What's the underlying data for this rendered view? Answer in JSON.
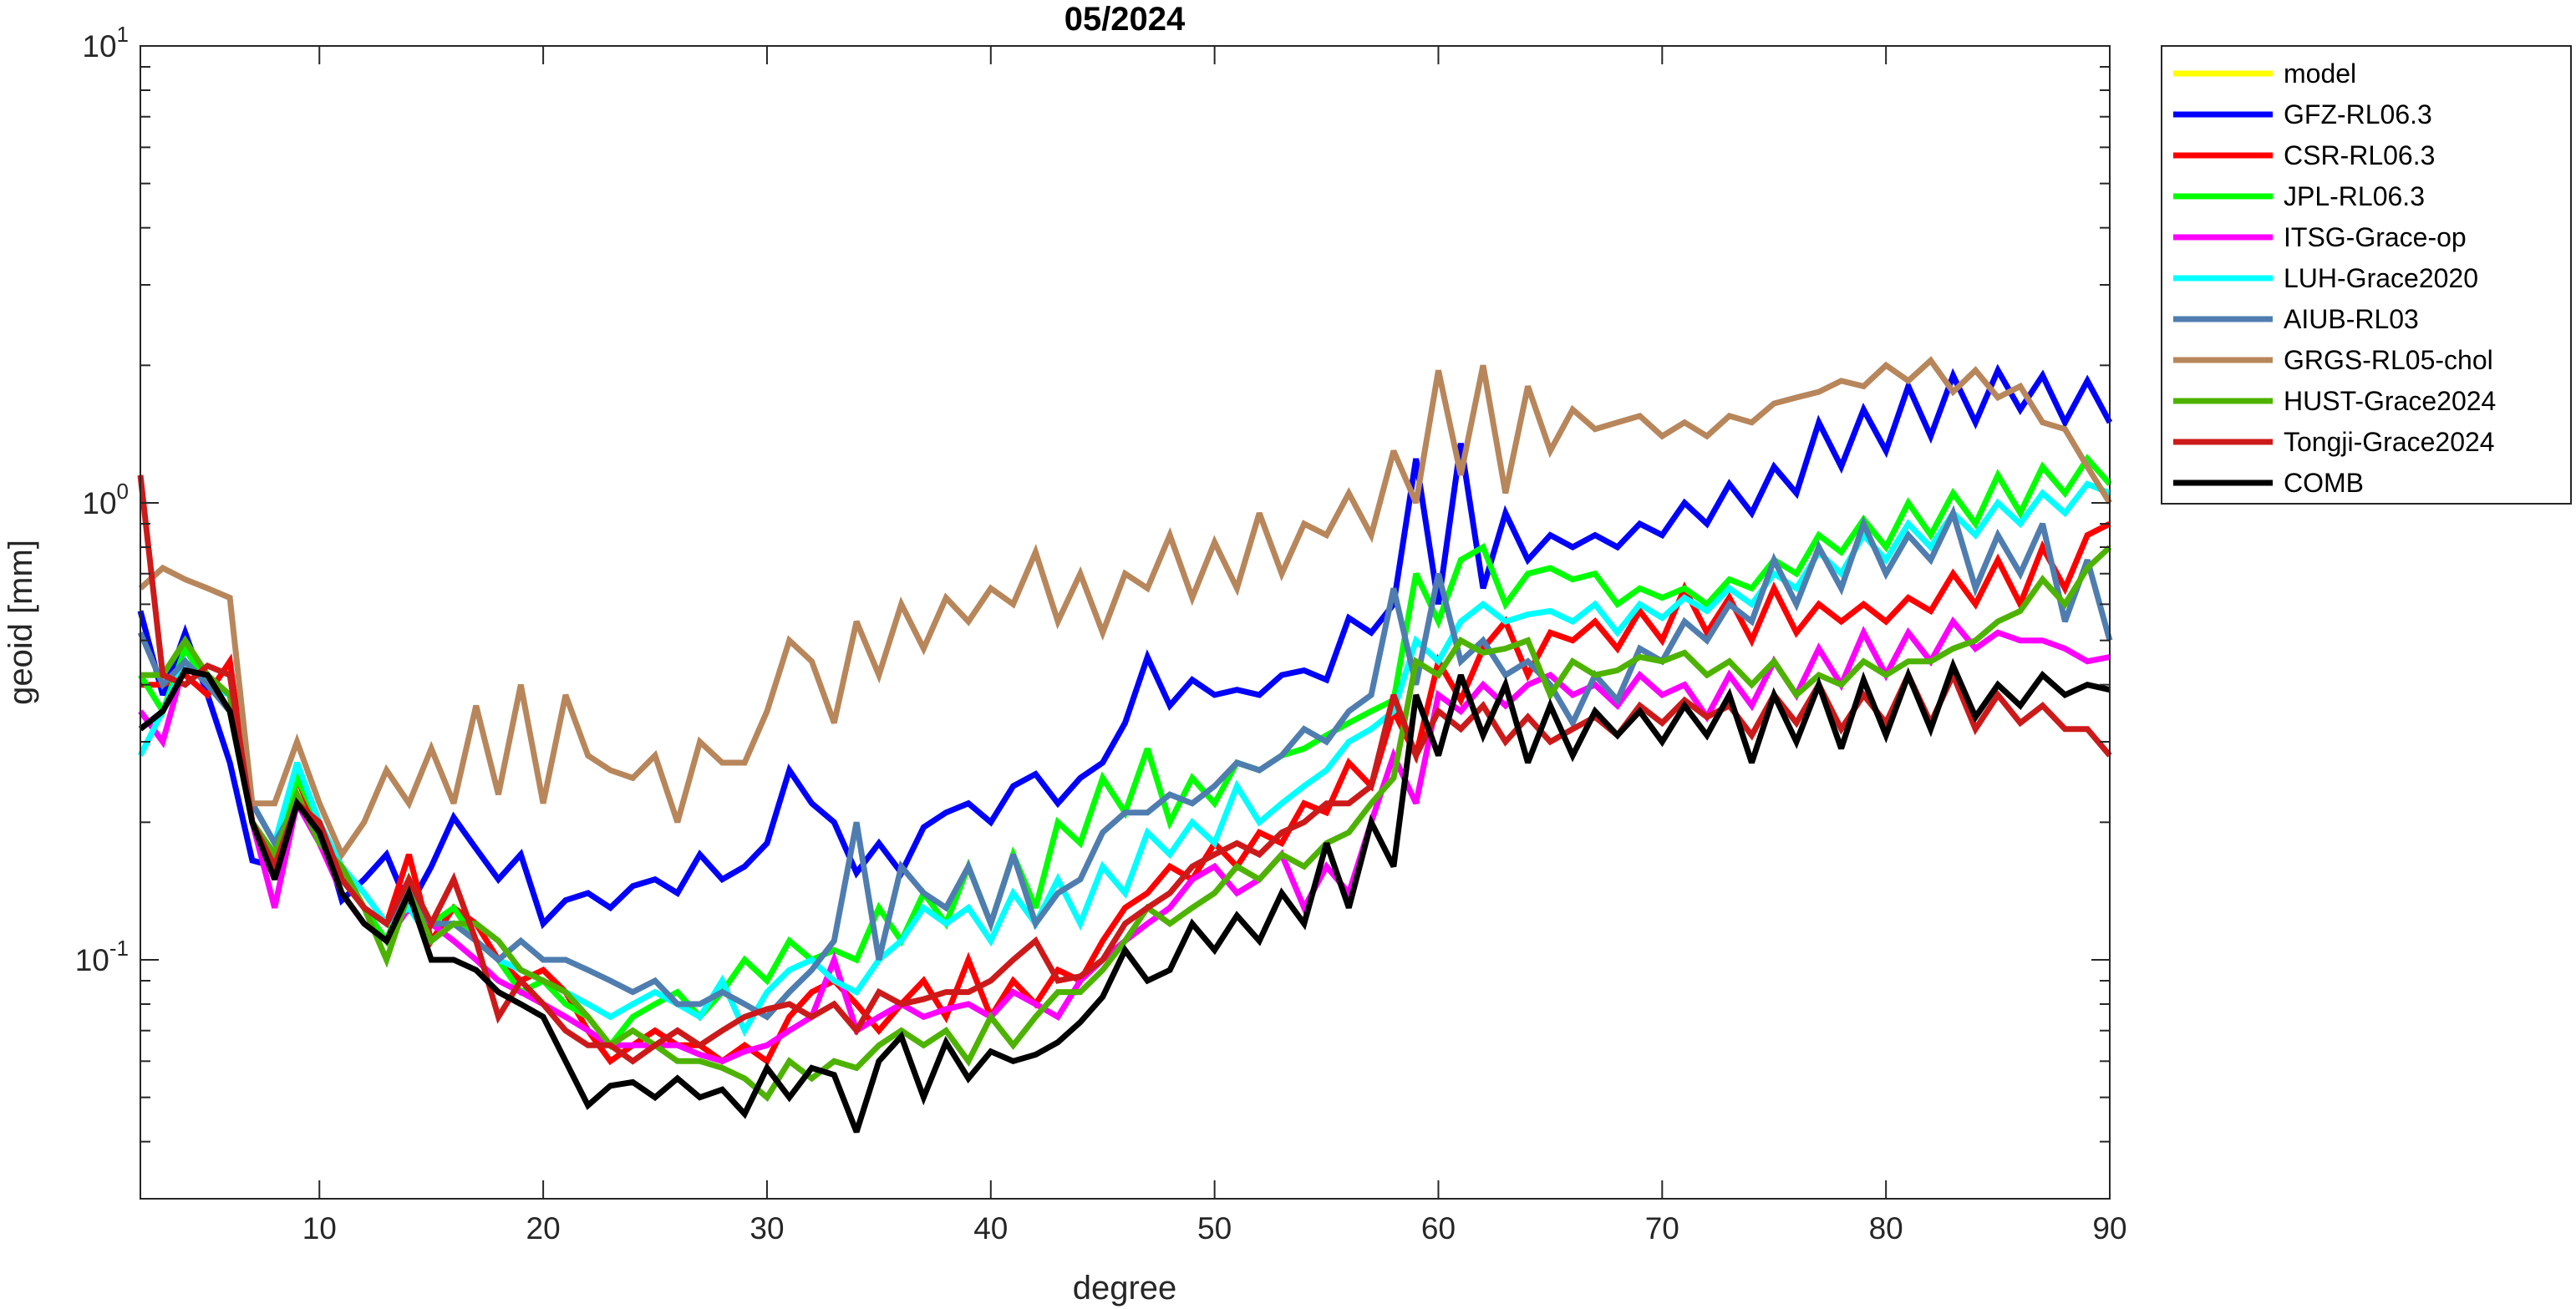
{
  "chart_data": {
    "type": "line",
    "title": "05/2024",
    "xlabel": "degree",
    "ylabel": "geoid [mm]",
    "xlim": [
      2,
      90
    ],
    "ylim": [
      0.03,
      10
    ],
    "yscale": "log",
    "xticks": [
      10,
      20,
      30,
      40,
      50,
      60,
      70,
      80,
      90
    ],
    "yticks": [
      {
        "value": 0.1,
        "base": "10",
        "exp": "-1"
      },
      {
        "value": 1,
        "base": "10",
        "exp": "0"
      },
      {
        "value": 10,
        "base": "10",
        "exp": "1"
      }
    ],
    "grid": false,
    "legend_position": "outside-top-right",
    "x_start": 2,
    "series": [
      {
        "name": "model",
        "color": "#ffff00",
        "values": []
      },
      {
        "name": "GFZ-RL06.3",
        "color": "#0000ff",
        "values": [
          0.58,
          0.38,
          0.52,
          0.38,
          0.27,
          0.165,
          0.16,
          0.25,
          0.2,
          0.135,
          0.15,
          0.17,
          0.13,
          0.16,
          0.205,
          0.175,
          0.15,
          0.17,
          0.12,
          0.135,
          0.14,
          0.13,
          0.145,
          0.15,
          0.14,
          0.17,
          0.15,
          0.16,
          0.18,
          0.26,
          0.22,
          0.2,
          0.155,
          0.18,
          0.155,
          0.195,
          0.21,
          0.22,
          0.2,
          0.24,
          0.255,
          0.22,
          0.25,
          0.27,
          0.33,
          0.46,
          0.36,
          0.41,
          0.38,
          0.39,
          0.38,
          0.42,
          0.43,
          0.41,
          0.56,
          0.52,
          0.6,
          1.25,
          0.6,
          1.35,
          0.65,
          0.95,
          0.75,
          0.85,
          0.8,
          0.85,
          0.8,
          0.9,
          0.85,
          1.0,
          0.9,
          1.1,
          0.95,
          1.2,
          1.05,
          1.5,
          1.2,
          1.6,
          1.3,
          1.8,
          1.4,
          1.9,
          1.5,
          1.95,
          1.6,
          1.9,
          1.5,
          1.85,
          1.5
        ]
      },
      {
        "name": "CSR-RL06.3",
        "color": "#ff0000",
        "values": [
          0.4,
          0.4,
          0.42,
          0.38,
          0.45,
          0.2,
          0.17,
          0.25,
          0.19,
          0.15,
          0.13,
          0.12,
          0.17,
          0.11,
          0.13,
          0.12,
          0.1,
          0.09,
          0.095,
          0.085,
          0.07,
          0.06,
          0.065,
          0.07,
          0.065,
          0.065,
          0.06,
          0.065,
          0.06,
          0.075,
          0.085,
          0.09,
          0.08,
          0.07,
          0.08,
          0.09,
          0.075,
          0.1,
          0.075,
          0.09,
          0.08,
          0.095,
          0.09,
          0.11,
          0.13,
          0.14,
          0.16,
          0.15,
          0.18,
          0.16,
          0.19,
          0.18,
          0.22,
          0.21,
          0.27,
          0.24,
          0.35,
          0.28,
          0.45,
          0.37,
          0.48,
          0.55,
          0.42,
          0.52,
          0.5,
          0.55,
          0.48,
          0.58,
          0.5,
          0.65,
          0.52,
          0.62,
          0.5,
          0.65,
          0.52,
          0.6,
          0.55,
          0.6,
          0.55,
          0.62,
          0.58,
          0.7,
          0.6,
          0.75,
          0.6,
          0.8,
          0.65,
          0.85,
          0.9
        ]
      },
      {
        "name": "JPL-RL06.3",
        "color": "#00ff00",
        "values": [
          0.42,
          0.35,
          0.48,
          0.4,
          0.35,
          0.2,
          0.17,
          0.25,
          0.2,
          0.15,
          0.13,
          0.11,
          0.15,
          0.12,
          0.13,
          0.11,
          0.1,
          0.085,
          0.09,
          0.08,
          0.075,
          0.065,
          0.075,
          0.08,
          0.085,
          0.075,
          0.085,
          0.1,
          0.09,
          0.11,
          0.1,
          0.105,
          0.1,
          0.13,
          0.11,
          0.14,
          0.12,
          0.16,
          0.12,
          0.17,
          0.13,
          0.2,
          0.18,
          0.25,
          0.21,
          0.29,
          0.2,
          0.25,
          0.22,
          0.27,
          0.26,
          0.28,
          0.29,
          0.31,
          0.33,
          0.35,
          0.37,
          0.7,
          0.55,
          0.75,
          0.8,
          0.6,
          0.7,
          0.72,
          0.68,
          0.7,
          0.6,
          0.65,
          0.62,
          0.65,
          0.6,
          0.68,
          0.65,
          0.75,
          0.7,
          0.85,
          0.78,
          0.92,
          0.8,
          1.0,
          0.85,
          1.05,
          0.9,
          1.15,
          0.95,
          1.2,
          1.05,
          1.25,
          1.1
        ]
      },
      {
        "name": "ITSG-Grace-op",
        "color": "#ff00ff",
        "values": [
          0.35,
          0.3,
          0.45,
          0.4,
          0.38,
          0.2,
          0.13,
          0.22,
          0.18,
          0.14,
          0.12,
          0.11,
          0.13,
          0.12,
          0.11,
          0.1,
          0.09,
          0.085,
          0.08,
          0.075,
          0.07,
          0.065,
          0.065,
          0.065,
          0.065,
          0.062,
          0.06,
          0.063,
          0.065,
          0.07,
          0.075,
          0.1,
          0.07,
          0.075,
          0.08,
          0.075,
          0.078,
          0.08,
          0.075,
          0.085,
          0.08,
          0.075,
          0.09,
          0.1,
          0.11,
          0.12,
          0.13,
          0.15,
          0.16,
          0.14,
          0.15,
          0.17,
          0.13,
          0.16,
          0.14,
          0.2,
          0.28,
          0.22,
          0.38,
          0.35,
          0.4,
          0.36,
          0.4,
          0.42,
          0.38,
          0.4,
          0.36,
          0.42,
          0.38,
          0.4,
          0.34,
          0.42,
          0.36,
          0.45,
          0.38,
          0.48,
          0.4,
          0.52,
          0.42,
          0.52,
          0.45,
          0.55,
          0.48,
          0.52,
          0.5,
          0.5,
          0.48,
          0.45,
          0.46
        ]
      },
      {
        "name": "LUH-Grace2020",
        "color": "#00ffff",
        "values": [
          0.28,
          0.35,
          0.45,
          0.4,
          0.38,
          0.22,
          0.18,
          0.27,
          0.2,
          0.16,
          0.14,
          0.12,
          0.13,
          0.11,
          0.12,
          0.11,
          0.1,
          0.095,
          0.09,
          0.085,
          0.08,
          0.075,
          0.08,
          0.085,
          0.08,
          0.075,
          0.09,
          0.07,
          0.085,
          0.095,
          0.1,
          0.09,
          0.085,
          0.1,
          0.11,
          0.13,
          0.12,
          0.13,
          0.11,
          0.14,
          0.12,
          0.15,
          0.12,
          0.16,
          0.14,
          0.19,
          0.17,
          0.2,
          0.18,
          0.24,
          0.2,
          0.22,
          0.24,
          0.26,
          0.3,
          0.32,
          0.35,
          0.5,
          0.45,
          0.55,
          0.6,
          0.55,
          0.57,
          0.58,
          0.55,
          0.6,
          0.52,
          0.6,
          0.56,
          0.62,
          0.58,
          0.65,
          0.6,
          0.7,
          0.65,
          0.78,
          0.7,
          0.85,
          0.75,
          0.9,
          0.8,
          0.95,
          0.85,
          1.0,
          0.9,
          1.05,
          0.95,
          1.1,
          1.05
        ]
      },
      {
        "name": "AIUB-RL03",
        "color": "#4f7daf",
        "values": [
          0.52,
          0.4,
          0.45,
          0.4,
          0.35,
          0.22,
          0.18,
          0.22,
          0.19,
          0.15,
          0.13,
          0.12,
          0.14,
          0.12,
          0.12,
          0.11,
          0.1,
          0.11,
          0.1,
          0.1,
          0.095,
          0.09,
          0.085,
          0.09,
          0.08,
          0.08,
          0.085,
          0.08,
          0.075,
          0.085,
          0.095,
          0.11,
          0.2,
          0.1,
          0.16,
          0.14,
          0.13,
          0.16,
          0.12,
          0.17,
          0.12,
          0.14,
          0.15,
          0.19,
          0.21,
          0.21,
          0.23,
          0.22,
          0.24,
          0.27,
          0.26,
          0.28,
          0.32,
          0.3,
          0.35,
          0.38,
          0.65,
          0.4,
          0.7,
          0.45,
          0.5,
          0.42,
          0.45,
          0.4,
          0.33,
          0.42,
          0.37,
          0.48,
          0.45,
          0.55,
          0.5,
          0.6,
          0.55,
          0.75,
          0.6,
          0.8,
          0.65,
          0.9,
          0.7,
          0.85,
          0.75,
          0.95,
          0.65,
          0.85,
          0.7,
          0.9,
          0.55,
          0.75,
          0.5
        ]
      },
      {
        "name": "GRGS-RL05-chol",
        "color": "#b8865b",
        "values": [
          0.65,
          0.72,
          0.68,
          0.65,
          0.62,
          0.22,
          0.22,
          0.3,
          0.22,
          0.17,
          0.2,
          0.26,
          0.22,
          0.29,
          0.22,
          0.36,
          0.23,
          0.4,
          0.22,
          0.38,
          0.28,
          0.26,
          0.25,
          0.28,
          0.2,
          0.3,
          0.27,
          0.27,
          0.35,
          0.5,
          0.45,
          0.33,
          0.55,
          0.42,
          0.6,
          0.48,
          0.62,
          0.55,
          0.65,
          0.6,
          0.78,
          0.55,
          0.7,
          0.52,
          0.7,
          0.65,
          0.85,
          0.62,
          0.82,
          0.65,
          0.95,
          0.7,
          0.9,
          0.85,
          1.05,
          0.85,
          1.3,
          1.0,
          1.95,
          1.15,
          2.0,
          1.05,
          1.8,
          1.3,
          1.6,
          1.45,
          1.5,
          1.55,
          1.4,
          1.5,
          1.4,
          1.55,
          1.5,
          1.65,
          1.7,
          1.75,
          1.85,
          1.8,
          2.0,
          1.85,
          2.05,
          1.75,
          1.95,
          1.7,
          1.8,
          1.5,
          1.45,
          1.2,
          1.0
        ]
      },
      {
        "name": "HUST-Grace2024",
        "color": "#4db300",
        "values": [
          0.42,
          0.42,
          0.5,
          0.42,
          0.38,
          0.2,
          0.17,
          0.23,
          0.18,
          0.16,
          0.13,
          0.1,
          0.14,
          0.11,
          0.12,
          0.12,
          0.11,
          0.095,
          0.09,
          0.085,
          0.075,
          0.065,
          0.07,
          0.065,
          0.06,
          0.06,
          0.058,
          0.055,
          0.05,
          0.06,
          0.055,
          0.06,
          0.058,
          0.065,
          0.07,
          0.065,
          0.07,
          0.06,
          0.075,
          0.065,
          0.075,
          0.085,
          0.085,
          0.095,
          0.11,
          0.13,
          0.12,
          0.13,
          0.14,
          0.16,
          0.15,
          0.17,
          0.16,
          0.18,
          0.19,
          0.22,
          0.25,
          0.45,
          0.42,
          0.5,
          0.47,
          0.48,
          0.5,
          0.38,
          0.45,
          0.42,
          0.43,
          0.46,
          0.45,
          0.47,
          0.42,
          0.45,
          0.4,
          0.45,
          0.38,
          0.42,
          0.4,
          0.45,
          0.42,
          0.45,
          0.45,
          0.48,
          0.5,
          0.55,
          0.58,
          0.68,
          0.6,
          0.72,
          0.8
        ]
      },
      {
        "name": "Tongji-Grace2024",
        "color": "#cc1a1a",
        "values": [
          1.15,
          0.42,
          0.4,
          0.44,
          0.42,
          0.2,
          0.16,
          0.22,
          0.2,
          0.15,
          0.13,
          0.12,
          0.15,
          0.12,
          0.15,
          0.11,
          0.075,
          0.09,
          0.08,
          0.07,
          0.065,
          0.065,
          0.06,
          0.065,
          0.07,
          0.065,
          0.07,
          0.075,
          0.078,
          0.08,
          0.075,
          0.08,
          0.07,
          0.085,
          0.08,
          0.082,
          0.085,
          0.085,
          0.09,
          0.1,
          0.11,
          0.09,
          0.092,
          0.1,
          0.12,
          0.13,
          0.14,
          0.16,
          0.17,
          0.18,
          0.17,
          0.19,
          0.2,
          0.22,
          0.22,
          0.24,
          0.38,
          0.28,
          0.35,
          0.32,
          0.36,
          0.3,
          0.34,
          0.3,
          0.32,
          0.34,
          0.31,
          0.36,
          0.33,
          0.37,
          0.34,
          0.36,
          0.31,
          0.38,
          0.33,
          0.4,
          0.32,
          0.38,
          0.33,
          0.42,
          0.33,
          0.42,
          0.32,
          0.38,
          0.33,
          0.36,
          0.32,
          0.32,
          0.28
        ]
      },
      {
        "name": "COMB",
        "color": "#000000",
        "values": [
          0.32,
          0.35,
          0.43,
          0.42,
          0.35,
          0.2,
          0.15,
          0.22,
          0.19,
          0.14,
          0.12,
          0.11,
          0.14,
          0.1,
          0.1,
          0.095,
          0.085,
          0.08,
          0.075,
          0.06,
          0.048,
          0.053,
          0.054,
          0.05,
          0.055,
          0.05,
          0.052,
          0.046,
          0.058,
          0.05,
          0.058,
          0.056,
          0.042,
          0.06,
          0.068,
          0.05,
          0.066,
          0.055,
          0.063,
          0.06,
          0.062,
          0.066,
          0.073,
          0.083,
          0.105,
          0.09,
          0.095,
          0.12,
          0.105,
          0.125,
          0.11,
          0.14,
          0.12,
          0.18,
          0.13,
          0.2,
          0.16,
          0.38,
          0.28,
          0.42,
          0.31,
          0.4,
          0.27,
          0.36,
          0.28,
          0.35,
          0.31,
          0.35,
          0.3,
          0.36,
          0.31,
          0.38,
          0.27,
          0.38,
          0.3,
          0.4,
          0.29,
          0.41,
          0.31,
          0.42,
          0.32,
          0.44,
          0.34,
          0.4,
          0.36,
          0.42,
          0.38,
          0.4,
          0.39
        ]
      }
    ]
  }
}
